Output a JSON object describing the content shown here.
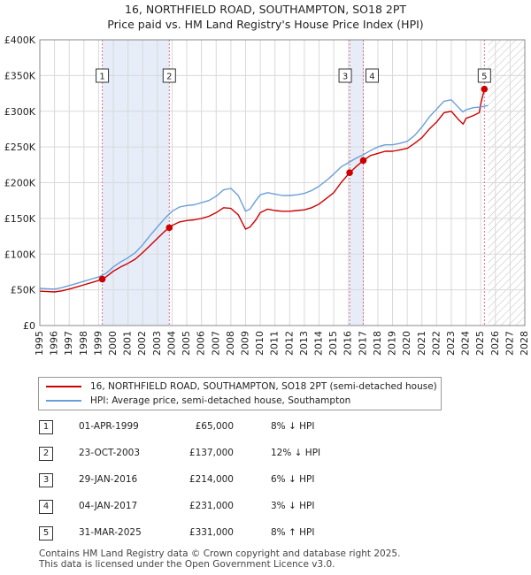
{
  "title_line1": "16, NORTHFIELD ROAD, SOUTHAMPTON, SO18 2PT",
  "title_line2": "Price paid vs. HM Land Registry's House Price Index (HPI)",
  "legend": {
    "property_label": "16, NORTHFIELD ROAD, SOUTHAMPTON, SO18 2PT (semi-detached house)",
    "hpi_label": "HPI: Average price, semi-detached house, Southampton"
  },
  "colors": {
    "property": "#cc0000",
    "hpi": "#6a9fd8",
    "grid": "#d9d9d9",
    "shade": "#dbe6f6",
    "hatch": "#bbbbbb"
  },
  "sales": [
    {
      "num": "1",
      "date": "01-APR-1999",
      "price": "£65,000",
      "hpi": "8% ↓ HPI"
    },
    {
      "num": "2",
      "date": "23-OCT-2003",
      "price": "£137,000",
      "hpi": "12% ↓ HPI"
    },
    {
      "num": "3",
      "date": "29-JAN-2016",
      "price": "£214,000",
      "hpi": "6% ↓ HPI"
    },
    {
      "num": "4",
      "date": "04-JAN-2017",
      "price": "£231,000",
      "hpi": "3% ↓ HPI"
    },
    {
      "num": "5",
      "date": "31-MAR-2025",
      "price": "£331,000",
      "hpi": "8% ↑ HPI"
    }
  ],
  "footer_line1": "Contains HM Land Registry data © Crown copyright and database right 2025.",
  "footer_line2": "This data is licensed under the Open Government Licence v3.0.",
  "chart_data": {
    "type": "line",
    "xlim": [
      1995,
      2028
    ],
    "ylim": [
      0,
      400000
    ],
    "y_ticks": [
      {
        "value": 0,
        "label": "£0"
      },
      {
        "value": 50000,
        "label": "£50K"
      },
      {
        "value": 100000,
        "label": "£100K"
      },
      {
        "value": 150000,
        "label": "£150K"
      },
      {
        "value": 200000,
        "label": "£200K"
      },
      {
        "value": 250000,
        "label": "£250K"
      },
      {
        "value": 300000,
        "label": "£300K"
      },
      {
        "value": 350000,
        "label": "£350K"
      },
      {
        "value": 400000,
        "label": "£400K"
      }
    ],
    "x_ticks": [
      {
        "value": 1995,
        "label": "1995"
      },
      {
        "value": 1996,
        "label": "1996"
      },
      {
        "value": 1997,
        "label": "1997"
      },
      {
        "value": 1998,
        "label": "1998"
      },
      {
        "value": 1999,
        "label": "1999"
      },
      {
        "value": 2000,
        "label": "2000"
      },
      {
        "value": 2001,
        "label": "2001"
      },
      {
        "value": 2002,
        "label": "2002"
      },
      {
        "value": 2003,
        "label": "2003"
      },
      {
        "value": 2004,
        "label": "2004"
      },
      {
        "value": 2005,
        "label": "2005"
      },
      {
        "value": 2006,
        "label": "2006"
      },
      {
        "value": 2007,
        "label": "2007"
      },
      {
        "value": 2008,
        "label": "2008"
      },
      {
        "value": 2009,
        "label": "2009"
      },
      {
        "value": 2010,
        "label": "2010"
      },
      {
        "value": 2011,
        "label": "2011"
      },
      {
        "value": 2012,
        "label": "2012"
      },
      {
        "value": 2013,
        "label": "2013"
      },
      {
        "value": 2014,
        "label": "2014"
      },
      {
        "value": 2015,
        "label": "2015"
      },
      {
        "value": 2016,
        "label": "2016"
      },
      {
        "value": 2017,
        "label": "2017"
      },
      {
        "value": 2018,
        "label": "2018"
      },
      {
        "value": 2019,
        "label": "2019"
      },
      {
        "value": 2020,
        "label": "2020"
      },
      {
        "value": 2021,
        "label": "2021"
      },
      {
        "value": 2022,
        "label": "2022"
      },
      {
        "value": 2023,
        "label": "2023"
      },
      {
        "value": 2024,
        "label": "2024"
      },
      {
        "value": 2025,
        "label": "2025"
      },
      {
        "value": 2026,
        "label": "2026"
      },
      {
        "value": 2027,
        "label": "2027"
      },
      {
        "value": 2028,
        "label": "2028"
      }
    ],
    "shaded_ranges": [
      [
        1999.25,
        2003.81
      ],
      [
        2016.08,
        2017.01
      ]
    ],
    "forecast_start": 2025.5,
    "series": [
      {
        "name": "16, NORTHFIELD ROAD, SOUTHAMPTON, SO18 2PT (semi-detached house)",
        "color": "#cc0000",
        "points": [
          [
            1995.0,
            48000
          ],
          [
            1995.5,
            47500
          ],
          [
            1996.0,
            47000
          ],
          [
            1996.5,
            48500
          ],
          [
            1997.0,
            51000
          ],
          [
            1997.5,
            54000
          ],
          [
            1998.0,
            57000
          ],
          [
            1998.5,
            60000
          ],
          [
            1999.0,
            63000
          ],
          [
            1999.25,
            65000
          ],
          [
            1999.5,
            68000
          ],
          [
            2000.0,
            76000
          ],
          [
            2000.5,
            82000
          ],
          [
            2001.0,
            87000
          ],
          [
            2001.5,
            93000
          ],
          [
            2002.0,
            102000
          ],
          [
            2002.5,
            112000
          ],
          [
            2003.0,
            122000
          ],
          [
            2003.5,
            132000
          ],
          [
            2003.81,
            137000
          ],
          [
            2004.0,
            140000
          ],
          [
            2004.5,
            145000
          ],
          [
            2005.0,
            147000
          ],
          [
            2005.5,
            148000
          ],
          [
            2006.0,
            150000
          ],
          [
            2006.5,
            153000
          ],
          [
            2007.0,
            158000
          ],
          [
            2007.5,
            165000
          ],
          [
            2008.0,
            164000
          ],
          [
            2008.5,
            155000
          ],
          [
            2009.0,
            135000
          ],
          [
            2009.3,
            138000
          ],
          [
            2009.7,
            148000
          ],
          [
            2010.0,
            158000
          ],
          [
            2010.5,
            163000
          ],
          [
            2011.0,
            161000
          ],
          [
            2011.5,
            160000
          ],
          [
            2012.0,
            160000
          ],
          [
            2012.5,
            161000
          ],
          [
            2013.0,
            162000
          ],
          [
            2013.5,
            165000
          ],
          [
            2014.0,
            170000
          ],
          [
            2014.5,
            178000
          ],
          [
            2015.0,
            186000
          ],
          [
            2015.5,
            200000
          ],
          [
            2016.08,
            214000
          ],
          [
            2016.5,
            222000
          ],
          [
            2017.01,
            231000
          ],
          [
            2017.5,
            238000
          ],
          [
            2018.0,
            241000
          ],
          [
            2018.5,
            244000
          ],
          [
            2019.0,
            244000
          ],
          [
            2019.5,
            246000
          ],
          [
            2020.0,
            248000
          ],
          [
            2020.5,
            255000
          ],
          [
            2021.0,
            263000
          ],
          [
            2021.5,
            275000
          ],
          [
            2022.0,
            285000
          ],
          [
            2022.5,
            298000
          ],
          [
            2023.0,
            300000
          ],
          [
            2023.5,
            288000
          ],
          [
            2023.8,
            282000
          ],
          [
            2024.0,
            290000
          ],
          [
            2024.5,
            294000
          ],
          [
            2024.9,
            298000
          ],
          [
            2025.0,
            310000
          ],
          [
            2025.25,
            331000
          ]
        ]
      },
      {
        "name": "HPI: Average price, semi-detached house, Southampton",
        "color": "#6a9fd8",
        "points": [
          [
            1995.0,
            52000
          ],
          [
            1995.5,
            51500
          ],
          [
            1996.0,
            51000
          ],
          [
            1996.5,
            53000
          ],
          [
            1997.0,
            56000
          ],
          [
            1997.5,
            59000
          ],
          [
            1998.0,
            62000
          ],
          [
            1998.5,
            65000
          ],
          [
            1999.0,
            68000
          ],
          [
            1999.5,
            73000
          ],
          [
            2000.0,
            82000
          ],
          [
            2000.5,
            89000
          ],
          [
            2001.0,
            95000
          ],
          [
            2001.5,
            102000
          ],
          [
            2002.0,
            113000
          ],
          [
            2002.5,
            126000
          ],
          [
            2003.0,
            138000
          ],
          [
            2003.5,
            150000
          ],
          [
            2004.0,
            160000
          ],
          [
            2004.5,
            166000
          ],
          [
            2005.0,
            168000
          ],
          [
            2005.5,
            169000
          ],
          [
            2006.0,
            172000
          ],
          [
            2006.5,
            175000
          ],
          [
            2007.0,
            181000
          ],
          [
            2007.5,
            190000
          ],
          [
            2008.0,
            192000
          ],
          [
            2008.5,
            182000
          ],
          [
            2009.0,
            160000
          ],
          [
            2009.3,
            163000
          ],
          [
            2009.7,
            175000
          ],
          [
            2010.0,
            183000
          ],
          [
            2010.5,
            186000
          ],
          [
            2011.0,
            184000
          ],
          [
            2011.5,
            182000
          ],
          [
            2012.0,
            182000
          ],
          [
            2012.5,
            183000
          ],
          [
            2013.0,
            185000
          ],
          [
            2013.5,
            189000
          ],
          [
            2014.0,
            195000
          ],
          [
            2014.5,
            203000
          ],
          [
            2015.0,
            212000
          ],
          [
            2015.5,
            222000
          ],
          [
            2016.0,
            228000
          ],
          [
            2016.5,
            234000
          ],
          [
            2017.0,
            239000
          ],
          [
            2017.5,
            245000
          ],
          [
            2018.0,
            250000
          ],
          [
            2018.5,
            253000
          ],
          [
            2019.0,
            253000
          ],
          [
            2019.5,
            255000
          ],
          [
            2020.0,
            258000
          ],
          [
            2020.5,
            266000
          ],
          [
            2021.0,
            278000
          ],
          [
            2021.5,
            292000
          ],
          [
            2022.0,
            303000
          ],
          [
            2022.5,
            314000
          ],
          [
            2023.0,
            316000
          ],
          [
            2023.5,
            305000
          ],
          [
            2023.8,
            299000
          ],
          [
            2024.0,
            302000
          ],
          [
            2024.5,
            305000
          ],
          [
            2025.0,
            306000
          ],
          [
            2025.25,
            307000
          ],
          [
            2025.5,
            308000
          ]
        ]
      }
    ],
    "sale_points": [
      {
        "label": "1",
        "x": 1999.25,
        "y": 65000
      },
      {
        "label": "2",
        "x": 2003.81,
        "y": 137000
      },
      {
        "label": "3",
        "x": 2016.08,
        "y": 214000
      },
      {
        "label": "4",
        "x": 2017.01,
        "y": 231000
      },
      {
        "label": "5",
        "x": 2025.25,
        "y": 331000
      }
    ]
  }
}
